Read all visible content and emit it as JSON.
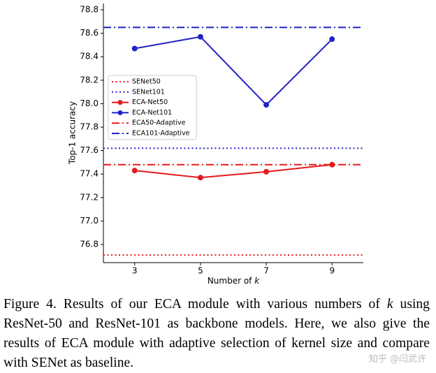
{
  "chart_data": {
    "type": "line",
    "x_label": "Number of",
    "x_label_var": "k",
    "y_label": "Top-1 accuracy",
    "x": [
      3,
      5,
      7,
      9
    ],
    "xlim": [
      2.05,
      9.95
    ],
    "xticks": [
      3,
      5,
      7,
      9
    ],
    "ylim": [
      76.645,
      78.854
    ],
    "yticks": [
      76.8,
      77.2,
      77.4,
      77.6,
      77.8,
      {
        "value": 78,
        "label": "78.0"
      },
      78.2,
      78.4,
      78.6,
      78.8,
      {
        "value": 77,
        "label": "77.0"
      }
    ],
    "legend": "center-left",
    "series": [
      {
        "name": "SENet50",
        "color": "#e41a1c",
        "linestyle": "dotted",
        "value": 76.71
      },
      {
        "name": "SENet101",
        "color": "#2222c8",
        "linestyle": "dotted",
        "value": 77.62
      },
      {
        "name": "ECA-Net50",
        "color": "#e41a1c",
        "linestyle": "solid",
        "marker": "circle",
        "values": [
          77.43,
          77.37,
          77.42,
          77.48
        ]
      },
      {
        "name": "ECA-Net101",
        "color": "#2222c8",
        "linestyle": "solid",
        "marker": "circle",
        "values": [
          78.47,
          78.57,
          77.99,
          78.55
        ]
      },
      {
        "name": "ECA50-Adaptive",
        "color": "#e41a1c",
        "linestyle": "dashdot",
        "value": 77.48
      },
      {
        "name": "ECA101-Adaptive",
        "color": "#2222c8",
        "linestyle": "dashdot",
        "value": 78.65
      }
    ]
  },
  "caption": {
    "prefix": "Figure 4. Results of our ECA module with various numbers of",
    "var": "k",
    "rest": "using ResNet-50 and ResNet-101 as backbone models. Here, we also give the results of ECA module with adaptive selection of kernel size and compare with SENet as baseline."
  },
  "watermark": "知乎 @闫武许"
}
